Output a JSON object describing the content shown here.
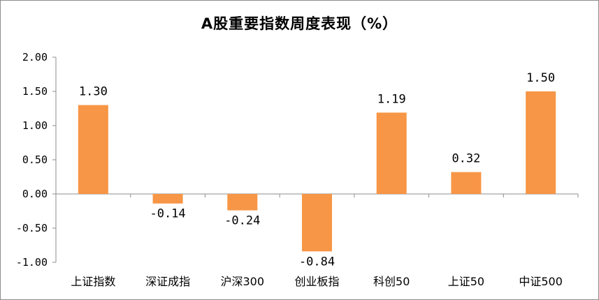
{
  "chart_data": {
    "type": "bar",
    "title": "A股重要指数周度表现（%）",
    "categories": [
      "上证指数",
      "深证成指",
      "沪深300",
      "创业板指",
      "科创50",
      "上证50",
      "中证500"
    ],
    "values": [
      1.3,
      -0.14,
      -0.24,
      -0.84,
      1.19,
      0.32,
      1.5
    ],
    "value_labels": [
      "1.30",
      "-0.14",
      "-0.24",
      "-0.84",
      "1.19",
      "0.32",
      "1.50"
    ],
    "y_ticks": [
      "2.00",
      "1.50",
      "1.00",
      "0.50",
      "0.00",
      "-0.50",
      "-1.00"
    ],
    "y_tick_values": [
      2.0,
      1.5,
      1.0,
      0.5,
      0.0,
      -0.5,
      -1.0
    ],
    "ylim": [
      -1.0,
      2.0
    ],
    "xlabel": "",
    "ylabel": "",
    "grid": false,
    "legend": "none",
    "bar_color": "#F79646"
  }
}
